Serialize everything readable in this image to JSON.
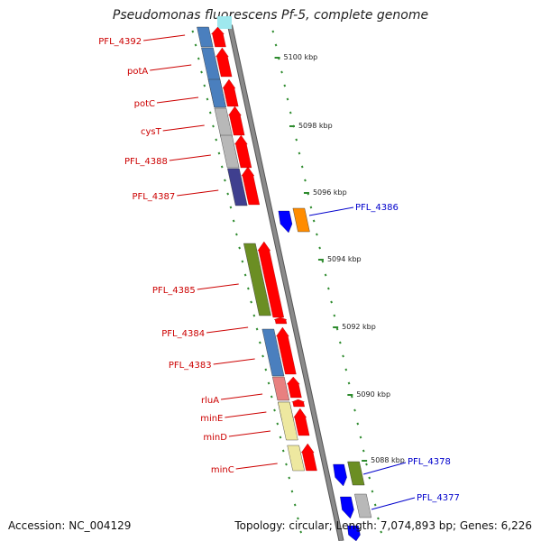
{
  "title": "Pseudomonas fluorescens Pf-5, complete genome",
  "footer": {
    "accession": "Accession: NC_004129",
    "summary": "Topology: circular; Length: 7,074,893 bp; Genes: 6,226"
  },
  "colors": {
    "backbone": "#8a8a8a",
    "tick": "#2e8b2e",
    "forward_arrow": "#ff0000",
    "reverse_arrow": "#0000ff",
    "left_label": "#cc0000",
    "right_label": "#0000cc"
  },
  "scale_labels": [
    "5100 kbp",
    "5098 kbp",
    "5096 kbp",
    "5094 kbp",
    "5092 kbp",
    "5090 kbp",
    "5088 kbp"
  ],
  "left_genes": [
    {
      "label": "PFL_4392",
      "color": "#4a7fbe"
    },
    {
      "label": "potA",
      "color": "#4a7fbe"
    },
    {
      "label": "potC",
      "color": "#4a7fbe"
    },
    {
      "label": "cysT",
      "color": "#b8b8b8"
    },
    {
      "label": "PFL_4388",
      "color": "#b8b8b8"
    },
    {
      "label": "PFL_4387",
      "color": "#3f3f8f"
    },
    {
      "label": "PFL_4385",
      "color": "#6b8e23"
    },
    {
      "label": "PFL_4384",
      "color": "#ff0000"
    },
    {
      "label": "PFL_4383",
      "color": "#4a7fbe"
    },
    {
      "label": "rluA",
      "color": "#e88080"
    },
    {
      "label": "minE",
      "color": "#eee8a0"
    },
    {
      "label": "minD",
      "color": "#eee8a0"
    },
    {
      "label": "minC",
      "color": "#eee8a0"
    }
  ],
  "right_genes": [
    {
      "label": "PFL_4386",
      "color": "#ff8c00"
    },
    {
      "label": "PFL_4378",
      "color": "#6b8e23"
    },
    {
      "label": "PFL_4377",
      "color": "#b8b8b8"
    }
  ]
}
